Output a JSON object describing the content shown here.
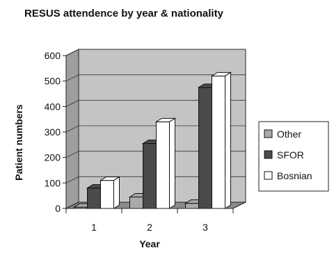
{
  "chart_data": {
    "type": "bar",
    "title": "RESUS attendence by year & nationality",
    "xlabel": "Year",
    "ylabel": "Patient numbers",
    "categories": [
      "1",
      "2",
      "3"
    ],
    "ylim": [
      0,
      600
    ],
    "yticks": [
      0,
      100,
      200,
      300,
      400,
      500,
      600
    ],
    "grid": true,
    "legend_position": "right",
    "series": [
      {
        "name": "Other",
        "values": [
          5,
          45,
          20
        ],
        "color": "#a9a9a9"
      },
      {
        "name": "SFOR",
        "values": [
          80,
          255,
          475
        ],
        "color": "#4a4a4a"
      },
      {
        "name": "Bosnian",
        "values": [
          110,
          340,
          520
        ],
        "color": "#ffffff"
      }
    ]
  }
}
